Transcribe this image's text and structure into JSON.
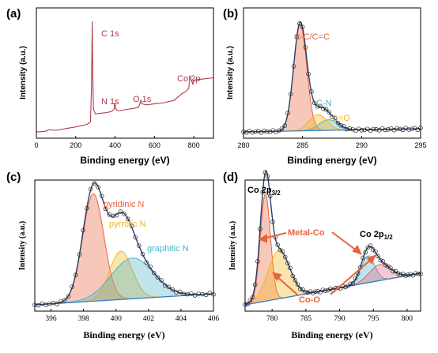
{
  "chart_data": [
    {
      "type": "line",
      "panel": "(a)",
      "xlabel": "Binding energy (eV)",
      "ylabel": "Intensity (a.u.)",
      "xlim": [
        0,
        900
      ],
      "xticks": [
        0,
        200,
        400,
        600,
        800
      ],
      "line_color": "#b03a48",
      "series": [
        {
          "x": [
            0,
            40,
            55,
            60,
            100,
            150,
            200,
            240,
            260,
            275,
            280,
            284,
            286,
            290,
            300,
            320,
            350,
            380,
            395,
            399,
            403,
            410,
            430,
            460,
            500,
            520,
            529,
            531,
            535,
            560,
            600,
            650,
            700,
            720,
            740,
            760,
            775,
            779,
            782,
            790,
            795,
            800,
            850,
            900
          ],
          "values": [
            2,
            2.5,
            3,
            4,
            3.5,
            5,
            6.5,
            8,
            9,
            11,
            40,
            100,
            60,
            22,
            18,
            18.5,
            19,
            20,
            22,
            28,
            23,
            21,
            21,
            22,
            23,
            24,
            29,
            30,
            27,
            26,
            27,
            28,
            30,
            33,
            36,
            38,
            41,
            52,
            50,
            47,
            44,
            48,
            49,
            50
          ]
        }
      ],
      "annotations": [
        {
          "text": "C 1s",
          "x": 285
        },
        {
          "text": "N 1s",
          "x": 400
        },
        {
          "text": "O 1s",
          "x": 531
        },
        {
          "text": "Co 2p",
          "x": 780
        }
      ]
    },
    {
      "type": "line",
      "panel": "(b)",
      "xlabel": "Binding energy (eV)",
      "ylabel": "Intensity (a.u.)",
      "xlim": [
        280,
        295
      ],
      "xticks": [
        280,
        285,
        290,
        295
      ],
      "series": [
        {
          "name": "C-C/C=C",
          "color": "#e8623a",
          "center": 284.8,
          "height": 100,
          "width": 0.55
        },
        {
          "name": "C-N",
          "color": "#4bb3c8",
          "center": 287.2,
          "height": 10,
          "width": 0.8
        },
        {
          "name": "C=O",
          "color": "#f2b51d",
          "center": 286.3,
          "height": 15,
          "width": 0.75
        }
      ]
    },
    {
      "type": "line",
      "panel": "(c)",
      "xlabel": "Binding energy (eV)",
      "ylabel": "Intensity (a.u.)",
      "xlim": [
        395,
        406
      ],
      "xticks": [
        396,
        398,
        400,
        402,
        404,
        406
      ],
      "series": [
        {
          "name": "pyridinic N",
          "color": "#e8623a",
          "center": 398.6,
          "height": 100,
          "width": 0.65
        },
        {
          "name": "pyrrolic N",
          "color": "#f2b51d",
          "center": 400.3,
          "height": 45,
          "width": 0.7
        },
        {
          "name": "graphitic N",
          "color": "#4bb3c8",
          "center": 401.0,
          "height": 38,
          "width": 1.3
        }
      ]
    },
    {
      "type": "line",
      "panel": "(d)",
      "xlabel": "Binding energy (eV)",
      "ylabel": "Intensity (a.u.)",
      "xlim": [
        776,
        802
      ],
      "xticks": [
        780,
        785,
        790,
        795,
        800
      ],
      "series": [
        {
          "name": "Metal-Co",
          "color": "#e8623a",
          "center": 779.0,
          "height": 100,
          "width": 0.75
        },
        {
          "name": "Co-O",
          "color": "#f2b51d",
          "center": 781.0,
          "height": 45,
          "width": 1.6
        },
        {
          "name": "Metal-Co 2p1/2",
          "color": "#4bb3c8",
          "center": 794.2,
          "height": 25,
          "width": 1.0
        },
        {
          "name": "Co-O 2p1/2",
          "color": "#e2607a",
          "center": 796.0,
          "height": 15,
          "width": 1.6
        }
      ]
    }
  ],
  "labels": {
    "panel_a": "(a)",
    "panel_b": "(b)",
    "panel_c": "(c)",
    "panel_d": "(d)",
    "a_ylabel": "Intensity (a.u.)",
    "a_xlabel": "Binding energy (eV)",
    "a_c1s": "C 1s",
    "a_n1s": "N 1s",
    "a_o1s": "O 1s",
    "a_co2p": "Co 2p",
    "b_ylabel": "Intensity (a.u.)",
    "b_xlabel": "Binding energy (eV)",
    "b_cc": "C-C/C=C",
    "b_cn": "C-N",
    "b_co": "C=O",
    "c_ylabel": "Intensity (a.u.)",
    "c_xlabel": "Binding energy (eV)",
    "c_pyridinic": "pyridinic N",
    "c_pyrrolic": "pyrrolic N",
    "c_graphitic": "graphitic N",
    "d_ylabel": "Intensity (a.u.)",
    "d_xlabel": "Binding energy (eV)",
    "d_co2p32_main": "Co 2p",
    "d_co2p32_sub": "3/2",
    "d_co2p12_main": "Co 2p",
    "d_co2p12_sub": "1/2",
    "d_metalco": "Metal-Co",
    "d_coo": "Co-O"
  }
}
